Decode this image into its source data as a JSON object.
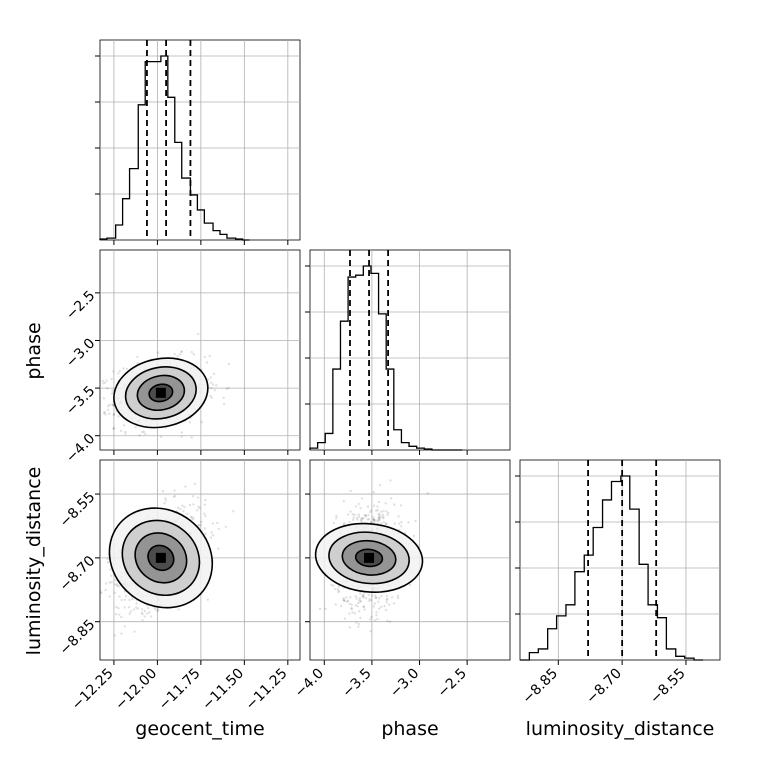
{
  "parameters": [
    "geocent_time",
    "phase",
    "luminosity_distance"
  ],
  "chart_data": {
    "type": "corner",
    "grid": true,
    "axis_labels": [
      "geocent_time",
      "phase",
      "luminosity_distance"
    ],
    "ranges": {
      "geocent_time": [
        -12.33,
        -11.18
      ],
      "phase": [
        -4.15,
        -2.05
      ],
      "luminosity_distance": [
        -8.94,
        -8.47
      ]
    },
    "ticks": {
      "geocent_time": [
        -12.25,
        -12.0,
        -11.75,
        -11.5,
        -11.25
      ],
      "phase": [
        -4.0,
        -3.5,
        -3.0,
        -2.5
      ],
      "luminosity_distance": [
        -8.85,
        -8.7,
        -8.55
      ]
    },
    "tick_labels": {
      "geocent_time": [
        "−12.25",
        "−12.00",
        "−11.75",
        "−11.50",
        "−11.25"
      ],
      "phase": [
        "−4.0",
        "−3.5",
        "−3.0",
        "−2.5"
      ],
      "luminosity_distance": [
        "−8.85",
        "−8.70",
        "−8.55"
      ]
    },
    "quantiles": {
      "geocent_time": [
        -12.06,
        -11.95,
        -11.81
      ],
      "phase": [
        -3.73,
        -3.53,
        -3.33
      ],
      "luminosity_distance": [
        -8.78,
        -8.7,
        -8.62
      ]
    },
    "histograms": {
      "geocent_time": {
        "edges": [
          -12.33,
          -12.29,
          -12.24,
          -12.2,
          -12.16,
          -12.11,
          -12.07,
          -12.03,
          -11.98,
          -11.94,
          -11.9,
          -11.86,
          -11.81,
          -11.77,
          -11.73,
          -11.68,
          -11.64,
          -11.6,
          -11.55,
          -11.51,
          -11.47
        ],
        "counts": [
          0.5,
          1,
          8,
          22,
          38,
          72,
          95,
          95,
          98,
          76,
          52,
          33,
          24,
          16,
          9,
          5,
          3,
          1,
          0.5,
          0
        ]
      },
      "phase": {
        "edges": [
          -4.15,
          -4.07,
          -3.99,
          -3.91,
          -3.83,
          -3.75,
          -3.67,
          -3.59,
          -3.51,
          -3.43,
          -3.35,
          -3.27,
          -3.19,
          -3.11,
          -3.03,
          -2.95,
          -2.87,
          -2.79,
          -2.71,
          -2.63,
          -2.55
        ],
        "counts": [
          1,
          4,
          9,
          44,
          70,
          94,
          95,
          100,
          96,
          74,
          44,
          11,
          4,
          2,
          1,
          0.5,
          0,
          0,
          0,
          0
        ]
      },
      "luminosity_distance": {
        "edges": [
          -8.94,
          -8.918,
          -8.897,
          -8.875,
          -8.854,
          -8.832,
          -8.811,
          -8.789,
          -8.768,
          -8.746,
          -8.725,
          -8.703,
          -8.682,
          -8.66,
          -8.639,
          -8.617,
          -8.596,
          -8.574,
          -8.553,
          -8.531,
          -8.51
        ],
        "counts": [
          0,
          4,
          6,
          17,
          24,
          30,
          48,
          57,
          72,
          87,
          97,
          100,
          82,
          52,
          30,
          23,
          6,
          2,
          1,
          0
        ]
      }
    },
    "correlations": {
      "phase_vs_geocent_time": {
        "mean": [
          -11.98,
          -3.55
        ],
        "sd": [
          0.13,
          0.17
        ],
        "rho": 0.15
      },
      "luminosity_distance_vs_geocent_time": {
        "mean": [
          -11.98,
          -8.7
        ],
        "sd": [
          0.13,
          0.06
        ],
        "rho": 0.45
      },
      "luminosity_distance_vs_phase": {
        "mean": [
          -3.53,
          -8.7
        ],
        "sd": [
          0.17,
          0.06
        ],
        "rho": 0.1
      }
    },
    "contour_levels_sigma": [
      0.5,
      1.0,
      1.5,
      2.0
    ]
  }
}
